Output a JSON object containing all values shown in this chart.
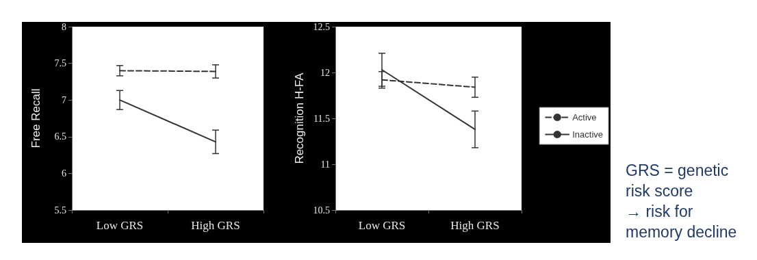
{
  "chart_data": [
    {
      "type": "line",
      "ylabel": "Free Recall",
      "categories": [
        "Low GRS",
        "High GRS"
      ],
      "ylim": [
        5.5,
        8
      ],
      "yticks": [
        5.5,
        6,
        6.5,
        7,
        7.5,
        8
      ],
      "marker": "none",
      "legend": false,
      "series": [
        {
          "color": "#333333",
          "line_style": "dashed",
          "values": [
            7.4,
            7.39
          ],
          "errors": [
            0.07,
            0.09
          ]
        },
        {
          "color": "#333333",
          "line_style": "solid",
          "values": [
            7.0,
            6.43
          ],
          "errors": [
            0.13,
            0.16
          ]
        }
      ]
    },
    {
      "type": "line",
      "ylabel": "Recognition H-FA",
      "categories": [
        "Low GRS",
        "High GRS"
      ],
      "ylim": [
        10.5,
        12.5
      ],
      "yticks": [
        10.5,
        11,
        11.5,
        12,
        12.5
      ],
      "marker": "none",
      "legend": "right",
      "annotations": [
        "GRS = genetic risk score\n→ risk for memory decline"
      ],
      "series": [
        {
          "name": "Active",
          "color": "#333333",
          "line_style": "dashed",
          "values": [
            11.92,
            11.84
          ],
          "errors": [
            0.09,
            0.11
          ]
        },
        {
          "name": "Inactive",
          "color": "#333333",
          "line_style": "solid",
          "values": [
            12.03,
            11.38
          ],
          "errors": [
            0.18,
            0.2
          ]
        }
      ]
    }
  ]
}
